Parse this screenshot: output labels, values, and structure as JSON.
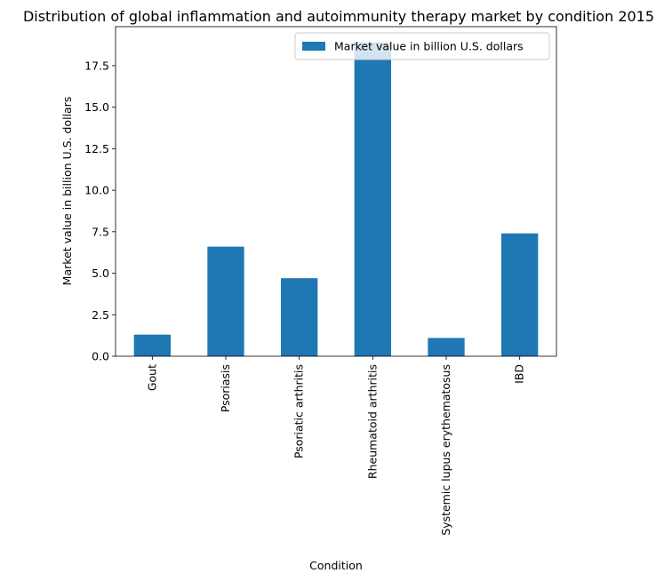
{
  "chart_data": {
    "type": "bar",
    "title": "Distribution of global inflammation and autoimmunity therapy market by condition 2015",
    "xlabel": "Condition",
    "ylabel": "Market value in billion U.S. dollars",
    "categories": [
      "Gout",
      "Psoriasis",
      "Psoriatic arthritis",
      "Rheumatoid arthritis",
      "Systemic lupus erythematosus",
      "IBD"
    ],
    "series": [
      {
        "name": "Market value in billion U.S. dollars",
        "values": [
          1.3,
          6.6,
          4.7,
          18.9,
          1.1,
          7.4
        ],
        "color": "#1f77b4"
      }
    ],
    "ylim": [
      0,
      19.85
    ],
    "yticks": [
      0.0,
      2.5,
      5.0,
      7.5,
      10.0,
      12.5,
      15.0,
      17.5
    ],
    "ytick_labels": [
      "0.0",
      "2.5",
      "5.0",
      "7.5",
      "10.0",
      "12.5",
      "15.0",
      "17.5"
    ],
    "legend_position": "upper right",
    "grid": false
  }
}
